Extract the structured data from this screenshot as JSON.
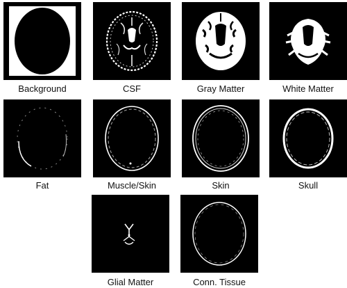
{
  "panels": [
    {
      "id": "background",
      "label": "Background"
    },
    {
      "id": "csf",
      "label": "CSF"
    },
    {
      "id": "gray-matter",
      "label": "Gray Matter"
    },
    {
      "id": "white-matter",
      "label": "White Matter"
    },
    {
      "id": "fat",
      "label": "Fat"
    },
    {
      "id": "muscle-skin",
      "label": "Muscle/Skin"
    },
    {
      "id": "skin",
      "label": "Skin"
    },
    {
      "id": "skull",
      "label": "Skull"
    },
    {
      "id": "glial-matter",
      "label": "Glial Matter"
    },
    {
      "id": "conn-tissue",
      "label": "Conn. Tissue"
    }
  ]
}
